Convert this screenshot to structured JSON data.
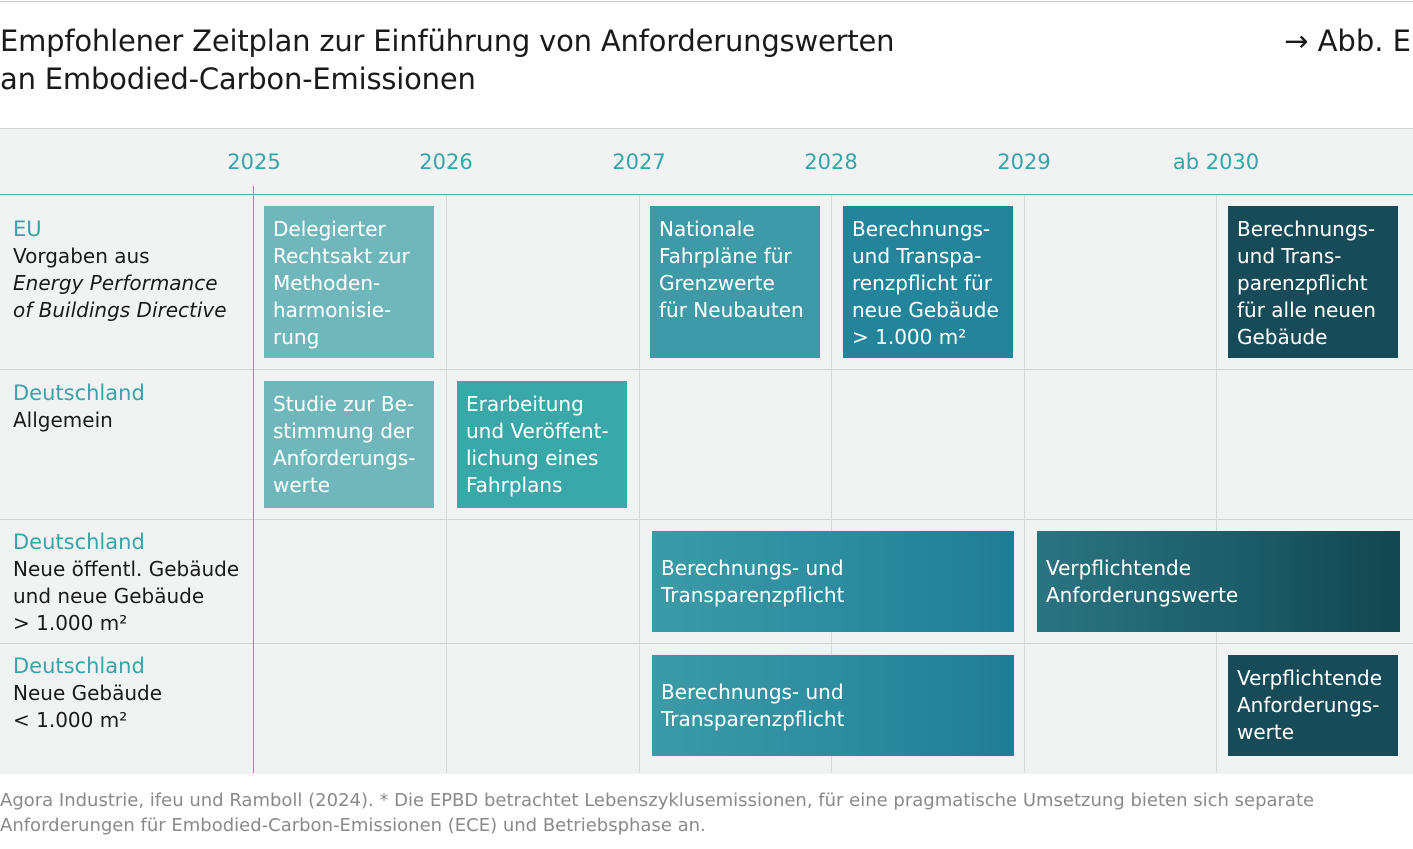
{
  "header": {
    "title_line1": "Empfohlener Zeitplan zur Einführung von Anforderungswerten",
    "title_line2": "an Embodied-Carbon-Emissionen",
    "reference": "→ Abb. E"
  },
  "timeline": {
    "years": [
      "2025",
      "2026",
      "2027",
      "2028",
      "2029",
      "ab 2030"
    ]
  },
  "rows": [
    {
      "region": "EU",
      "lines": [
        "Vorgaben aus"
      ],
      "italic_lines": [
        "Energy Performance",
        "of Buildings Directive"
      ]
    },
    {
      "region": "Deutschland",
      "lines": [
        "Allgemein"
      ]
    },
    {
      "region": "Deutschland",
      "lines": [
        "Neue öffentl. Gebäude",
        "und neue Gebäude",
        "> 1.000 m²"
      ]
    },
    {
      "region": "Deutschland",
      "lines": [
        "Neue Gebäude",
        "< 1.000 m²"
      ]
    }
  ],
  "boxes": {
    "eu_1": "Delegierter\nRechtsakt zur\nMethoden-\nharmonisie-\nrung",
    "eu_2": "Nationale\nFahrpläne für\nGrenzwerte\nfür Neubauten",
    "eu_3": "Berechnungs-\nund Transpa-\nrenzpflicht für\nneue Gebäude\n> 1.000 m²",
    "eu_4": "Berechnungs-\nund Trans-\nparenzpflicht\nfür alle neuen\nGebäude",
    "de_allg_1": "Studie zur Be-\nstimmung der\nAnforderungs-\nwerte",
    "de_allg_2": "Erarbeitung\nund Veröffent-\nlichung eines\nFahrplans",
    "de_gt_1": "Berechnungs- und\nTransparenzpflicht",
    "de_gt_2": "Verpflichtende\nAnforderungswerte",
    "de_lt_1": "Berechnungs- und\nTransparenzpflicht",
    "de_lt_2": "Verpflichtende\nAnforderungs-\nwerte"
  },
  "footnote": {
    "line1": "Agora Industrie, ifeu und Ramboll (2024). * Die EPBD betrachtet Lebenszyklusemissionen, für eine pragmatische Umsetzung bieten sich separate",
    "line2": "Anforderungen für Embodied-Carbon-Emissionen (ECE) und Betriebsphase an."
  },
  "colors": {
    "accent": "#3aa3a8",
    "box_light": "#6fb7bb",
    "box_teal": "#3aa8a9",
    "box_mid": "#3d9aa6",
    "box_dark": "#24859a",
    "box_darkest": "#164b57",
    "panel_bg": "#f1f3f3"
  }
}
